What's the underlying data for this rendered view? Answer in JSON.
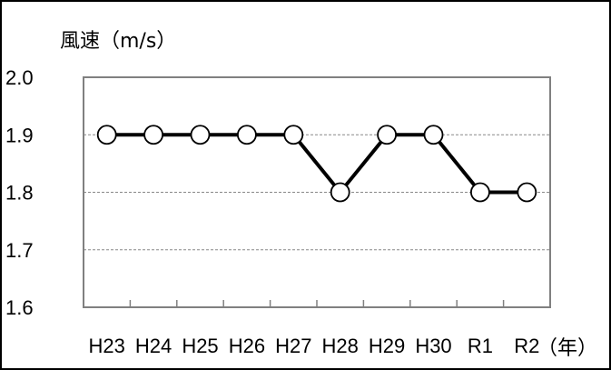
{
  "chart_data": {
    "type": "line",
    "title": "",
    "ylabel": "風速（m/s）",
    "xlabel": "（年）",
    "categories": [
      "H23",
      "H24",
      "H25",
      "H26",
      "H27",
      "H28",
      "H29",
      "H30",
      "R1",
      "R2"
    ],
    "series": [
      {
        "values": [
          1.9,
          1.9,
          1.9,
          1.9,
          1.9,
          1.8,
          1.9,
          1.9,
          1.8,
          1.8
        ]
      }
    ],
    "ylim": [
      1.6,
      2.0
    ],
    "yticks": [
      "2.0",
      "1.9",
      "1.8",
      "1.7",
      "1.6"
    ],
    "grid": "horizontal dashed",
    "legend": "none",
    "colors": {
      "line": "#000000",
      "marker_fill": "#ffffff",
      "grid": "#888888",
      "plot_border": "#808080"
    }
  }
}
